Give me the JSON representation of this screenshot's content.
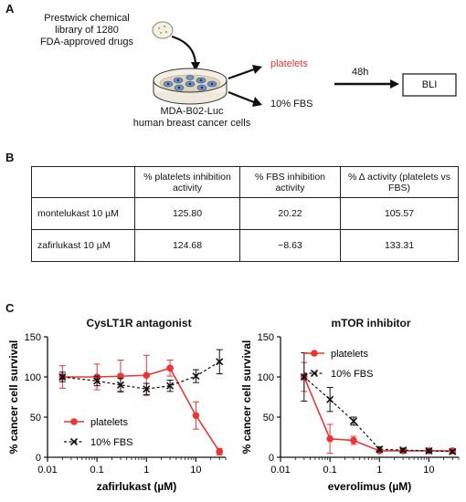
{
  "panels": {
    "a": "A",
    "b": "B",
    "c": "C"
  },
  "schematic": {
    "library_lines": [
      "Prestwick chemical",
      "library of 1280",
      "FDA-approved drugs"
    ],
    "cell_lines": [
      "MDA-B02-Luc",
      "human breast cancer cells"
    ],
    "condition_platelets": "platelets",
    "condition_fbs": "10% FBS",
    "time_label": "48h",
    "readout": "BLI",
    "accent_color": "#ee3333"
  },
  "table": {
    "headers": [
      "",
      "% platelets inhibition activity",
      "% FBS inhibition activity",
      "% Δ activity (platelets vs FBS)"
    ],
    "rows": [
      [
        "montelukast 10 µM",
        "125.80",
        "20.22",
        "105.57"
      ],
      [
        "zafirlukast 10 µM",
        "124.68",
        "−8.63",
        "133.31"
      ]
    ]
  },
  "chart_data": [
    {
      "type": "line",
      "title": "CysLT1R antagonist",
      "xlabel": "zafirlukast (µM)",
      "ylabel": "% cancer cell survival",
      "x_scale": "log",
      "xlim": [
        0.01,
        40
      ],
      "ylim": [
        0,
        150
      ],
      "x_ticks": [
        "0.01",
        "0.1",
        "1",
        "10"
      ],
      "y_ticks": [
        "0",
        "50",
        "100",
        "150"
      ],
      "legend_position": "bottom-left",
      "series": [
        {
          "name": "platelets",
          "color": "#ee3333",
          "style": "solid",
          "marker": "circle",
          "x": [
            0.02,
            0.1,
            0.3,
            1,
            3,
            10,
            30
          ],
          "y": [
            100,
            100,
            101,
            102,
            111,
            52,
            7
          ],
          "err": [
            14,
            16,
            20,
            25,
            10,
            17,
            4
          ]
        },
        {
          "name": "10% FBS",
          "color": "#111111",
          "style": "dashed",
          "marker": "x",
          "x": [
            0.02,
            0.1,
            0.3,
            1,
            3,
            10,
            30
          ],
          "y": [
            100,
            95,
            90,
            85,
            89,
            101,
            119
          ],
          "err": [
            6,
            6,
            8,
            7,
            7,
            8,
            15
          ]
        }
      ]
    },
    {
      "type": "line",
      "title": "mTOR inhibitor",
      "xlabel": "everolimus (µM)",
      "ylabel": "% cancer cell survival",
      "x_scale": "log",
      "xlim": [
        0.01,
        40
      ],
      "ylim": [
        0,
        150
      ],
      "x_ticks": [
        "0.01",
        "0.1",
        "1",
        "10"
      ],
      "y_ticks": [
        "0",
        "50",
        "100",
        "150"
      ],
      "legend_position": "top-right",
      "series": [
        {
          "name": "platelets",
          "color": "#ee3333",
          "style": "solid",
          "marker": "circle",
          "x": [
            0.03,
            0.1,
            0.3,
            1,
            3,
            10,
            30
          ],
          "y": [
            100,
            23,
            21,
            8,
            8,
            8,
            8
          ],
          "err": [
            18,
            18,
            5,
            2,
            2,
            2,
            2
          ]
        },
        {
          "name": "10% FBS",
          "color": "#111111",
          "style": "dashed",
          "marker": "x",
          "x": [
            0.03,
            0.1,
            0.3,
            1,
            3,
            10,
            30
          ],
          "y": [
            100,
            72,
            45,
            10,
            9,
            8,
            7
          ],
          "err": [
            30,
            15,
            5,
            3,
            2,
            2,
            2
          ]
        }
      ]
    }
  ]
}
